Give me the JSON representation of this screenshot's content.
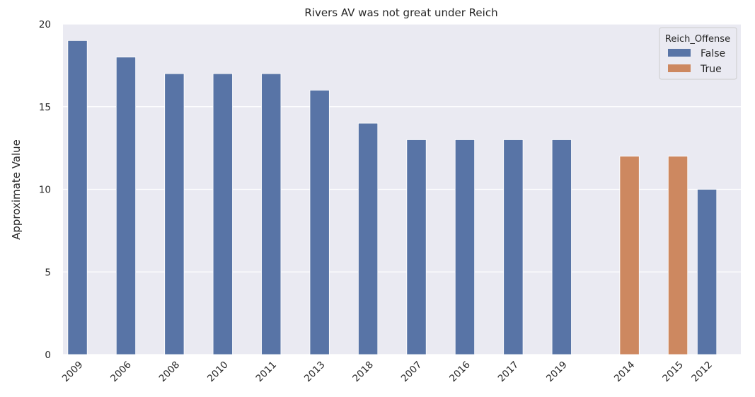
{
  "chart_data": {
    "type": "bar",
    "title": "Rivers AV was not great under Reich",
    "xlabel": "",
    "ylabel": "Approximate Value",
    "ylim": [
      0,
      20
    ],
    "yticks": [
      0,
      5,
      10,
      15,
      20
    ],
    "grid": true,
    "categories": [
      "2009",
      "2006",
      "2008",
      "2010",
      "2011",
      "2013",
      "2018",
      "2007",
      "2016",
      "2017",
      "2019",
      "2014",
      "2015",
      "2012"
    ],
    "values": [
      19,
      18,
      17,
      17,
      17,
      16,
      14,
      13,
      13,
      13,
      13,
      12,
      12,
      10
    ],
    "hue": [
      "False",
      "False",
      "False",
      "False",
      "False",
      "False",
      "False",
      "False",
      "False",
      "False",
      "False",
      "True",
      "True",
      "False"
    ],
    "legend": {
      "title": "Reich_Offense",
      "placement": "top-right",
      "entries": [
        {
          "name": "False",
          "color": "#5874a6"
        },
        {
          "name": "True",
          "color": "#cd8860"
        }
      ]
    },
    "background_color": "#eaeaf2"
  }
}
